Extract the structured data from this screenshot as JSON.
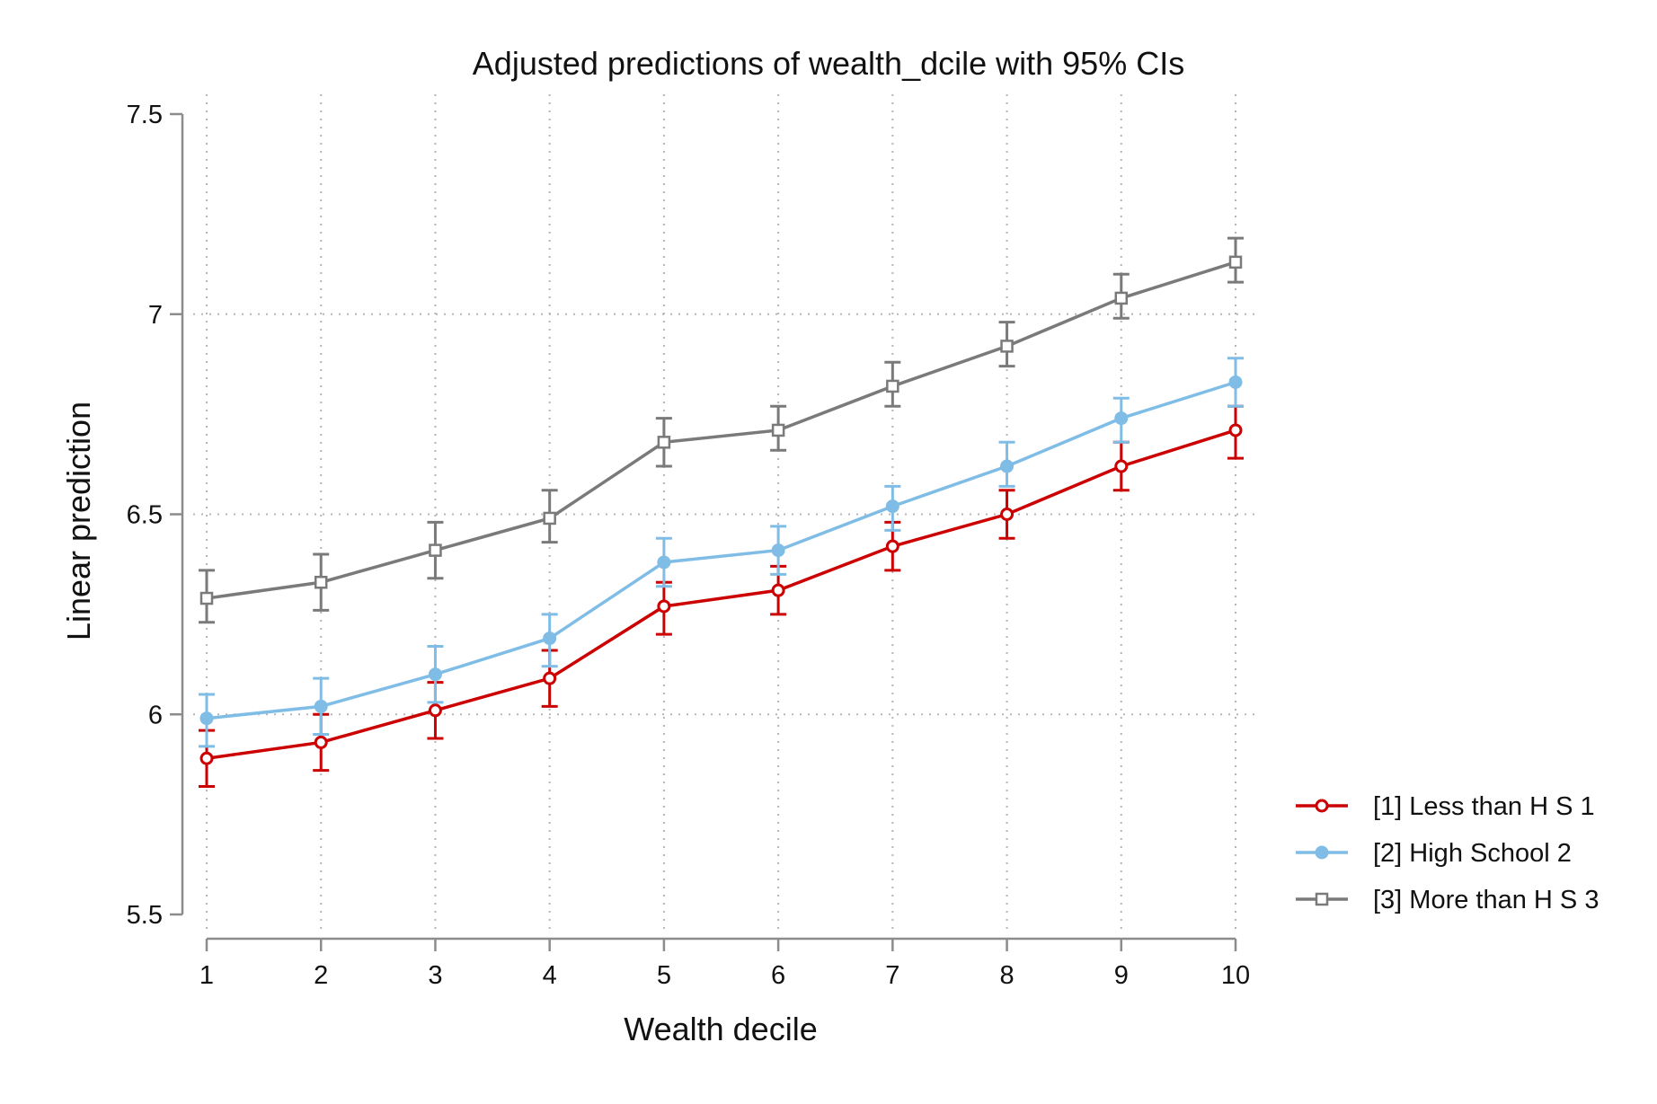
{
  "chart_data": {
    "type": "line",
    "title": "Adjusted predictions of wealth_dcile with 95% CIs",
    "xlabel": "Wealth decile",
    "ylabel": "Linear prediction",
    "x": [
      1,
      2,
      3,
      4,
      5,
      6,
      7,
      8,
      9,
      10
    ],
    "x_ticks": [
      "1",
      "2",
      "3",
      "4",
      "5",
      "6",
      "7",
      "8",
      "9",
      "10"
    ],
    "y_ticks": [
      "5.5",
      "6",
      "6.5",
      "7",
      "7.5"
    ],
    "ylim": [
      5.5,
      7.5
    ],
    "grid": true,
    "legend_position": "right",
    "series": [
      {
        "name": "[1] Less than H S 1",
        "color": "#cc0000",
        "marker": "hollow-circle",
        "values": [
          5.89,
          5.93,
          6.01,
          6.09,
          6.27,
          6.31,
          6.42,
          6.5,
          6.62,
          6.71
        ],
        "ci_low": [
          5.82,
          5.86,
          5.94,
          6.02,
          6.2,
          6.25,
          6.36,
          6.44,
          6.56,
          6.64
        ],
        "ci_high": [
          5.96,
          6.0,
          6.08,
          6.16,
          6.33,
          6.37,
          6.48,
          6.56,
          6.68,
          6.77
        ]
      },
      {
        "name": "[2] High School 2",
        "color": "#7fbde6",
        "marker": "filled-circle",
        "values": [
          5.99,
          6.02,
          6.1,
          6.19,
          6.38,
          6.41,
          6.52,
          6.62,
          6.74,
          6.83
        ],
        "ci_low": [
          5.92,
          5.95,
          6.03,
          6.12,
          6.32,
          6.35,
          6.46,
          6.57,
          6.68,
          6.77
        ],
        "ci_high": [
          6.05,
          6.09,
          6.17,
          6.25,
          6.44,
          6.47,
          6.57,
          6.68,
          6.79,
          6.89
        ]
      },
      {
        "name": "[3] More than H S 3",
        "color": "#7a7a7a",
        "marker": "hollow-square",
        "values": [
          6.29,
          6.33,
          6.41,
          6.49,
          6.68,
          6.71,
          6.82,
          6.92,
          7.04,
          7.13
        ],
        "ci_low": [
          6.23,
          6.26,
          6.34,
          6.43,
          6.62,
          6.66,
          6.77,
          6.87,
          6.99,
          7.08
        ],
        "ci_high": [
          6.36,
          6.4,
          6.48,
          6.56,
          6.74,
          6.77,
          6.88,
          6.98,
          7.1,
          7.19
        ]
      }
    ]
  }
}
